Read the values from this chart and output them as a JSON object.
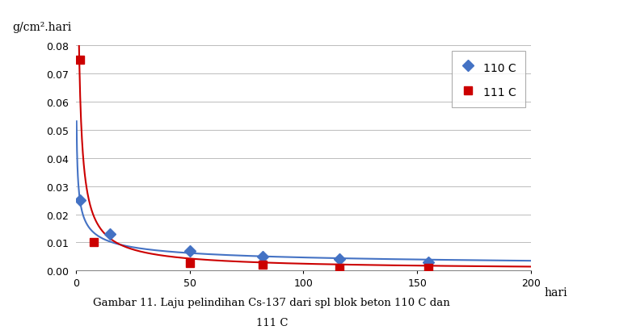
{
  "series_110C": {
    "x": [
      2,
      15,
      50,
      82,
      116,
      155
    ],
    "y": [
      0.025,
      0.013,
      0.007,
      0.005,
      0.004,
      0.003
    ],
    "color": "#4472C4",
    "marker": "D",
    "label": "110 C"
  },
  "series_111C": {
    "x": [
      2,
      8,
      50,
      82,
      116,
      155
    ],
    "y": [
      0.075,
      0.01,
      0.0025,
      0.002,
      0.001,
      0.001
    ],
    "color": "#CC0000",
    "marker": "s",
    "label": "111 C"
  },
  "curve_110C": {
    "a": 0.032,
    "b": -0.42
  },
  "curve_111C": {
    "a": 0.105,
    "b": -0.82
  },
  "xlim": [
    0,
    200
  ],
  "ylim": [
    0,
    0.08
  ],
  "xticks": [
    0,
    50,
    100,
    150,
    200
  ],
  "yticks": [
    0,
    0.01,
    0.02,
    0.03,
    0.04,
    0.05,
    0.06,
    0.07,
    0.08
  ],
  "ylabel_text": "g/cm².hari",
  "xlabel_text": "hari",
  "caption_line1": "Gambar 11. Laju pelindihan Cs-137 dari spl blok beton 110 C dan",
  "caption_line2": "111 C",
  "bg_color": "#FFFFFF",
  "grid_color": "#BBBBBB",
  "line_width": 1.5,
  "marker_size": 7
}
